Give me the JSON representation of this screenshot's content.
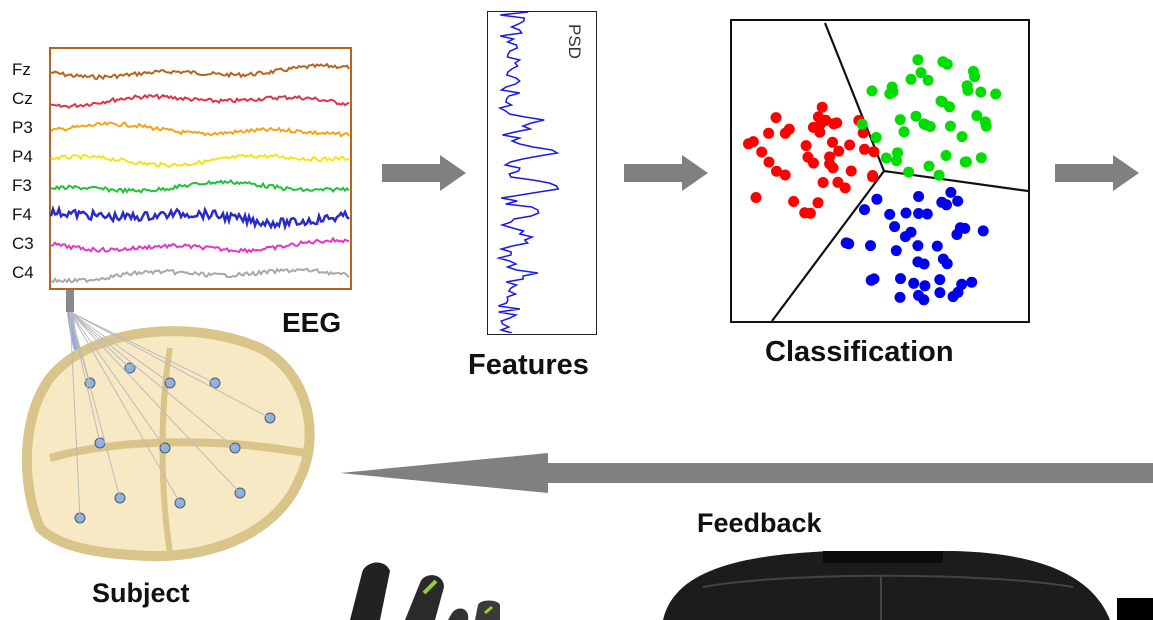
{
  "eeg": {
    "title": "EEG",
    "channels": [
      {
        "name": "Fz",
        "color": "#b5651d"
      },
      {
        "name": "Cz",
        "color": "#e0334b"
      },
      {
        "name": "P3",
        "color": "#f5a31a"
      },
      {
        "name": "P4",
        "color": "#f5e31a"
      },
      {
        "name": "F3",
        "color": "#22c13a"
      },
      {
        "name": "F4",
        "color": "#2a2ac8"
      },
      {
        "name": "C3",
        "color": "#e535c8"
      },
      {
        "name": "C4",
        "color": "#a8a8a8"
      }
    ],
    "frame_color": "#b5651d"
  },
  "features": {
    "title": "Features",
    "psd_label": "PSD",
    "line_color": "#1a1ae6"
  },
  "classification": {
    "title": "Classification",
    "class_colors": [
      "#ff0000",
      "#00dd00",
      "#0000ee"
    ]
  },
  "feedback": {
    "title": "Feedback"
  },
  "subject": {
    "title": "Subject"
  },
  "arrow_color": "#808080"
}
